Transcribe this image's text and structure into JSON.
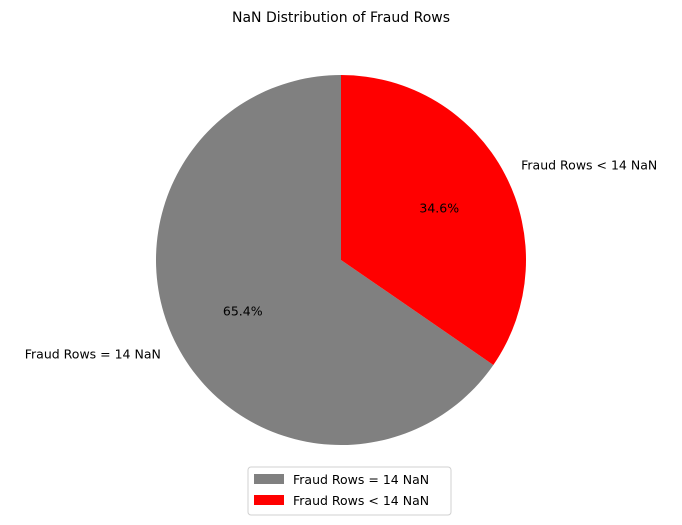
{
  "chart_data": {
    "type": "pie",
    "title": "NaN Distribution of Fraud Rows",
    "categories": [
      "Fraud Rows = 14 NaN",
      "Fraud Rows < 14 NaN"
    ],
    "values": [
      65.4,
      34.6
    ],
    "percent_labels": [
      "65.4%",
      "34.6%"
    ],
    "colors": [
      "#808080",
      "#ff0000"
    ],
    "start_angle_deg": 90,
    "direction": "counterclockwise",
    "legend": {
      "placement": "bottom-center",
      "entries": [
        "Fraud Rows = 14 NaN",
        "Fraud Rows < 14 NaN"
      ]
    }
  }
}
